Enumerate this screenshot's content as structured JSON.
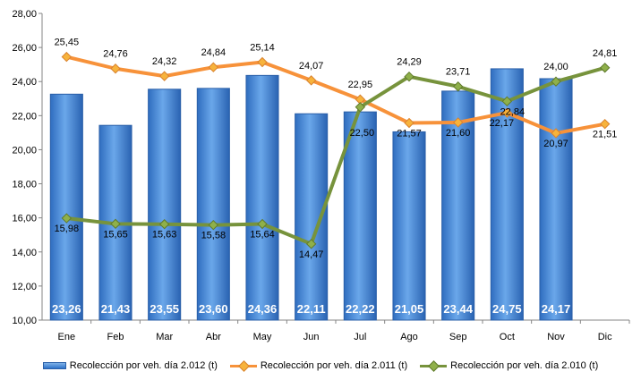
{
  "chart_data": {
    "type": "bar",
    "categories": [
      "Ene",
      "Feb",
      "Mar",
      "Abr",
      "May",
      "Jun",
      "Jul",
      "Ago",
      "Sep",
      "Oct",
      "Nov",
      "Dic"
    ],
    "ylim": [
      10,
      28
    ],
    "yticks": [
      "10,00",
      "12,00",
      "14,00",
      "16,00",
      "18,00",
      "20,00",
      "22,00",
      "24,00",
      "26,00",
      "28,00"
    ],
    "grid": false,
    "legend_position": "bottom",
    "series": [
      {
        "name": "Recolección por veh. día 2.012 (t)",
        "type": "bar",
        "color": "#3b7fd1",
        "values": [
          23.26,
          21.43,
          23.55,
          23.6,
          24.36,
          22.11,
          22.22,
          21.05,
          23.44,
          24.75,
          24.17,
          null
        ],
        "labels": [
          "23,26",
          "21,43",
          "23,55",
          "23,60",
          "24,36",
          "22,11",
          "22,22",
          "21,05",
          "23,44",
          "24,75",
          "24,17",
          ""
        ]
      },
      {
        "name": "Recolección por veh. día 2.011 (t)",
        "type": "line",
        "color": "#f7923a",
        "values": [
          25.45,
          24.76,
          24.32,
          24.84,
          25.14,
          24.07,
          22.95,
          21.57,
          21.6,
          22.17,
          20.97,
          21.51
        ],
        "labels": [
          "25,45",
          "24,76",
          "24,32",
          "24,84",
          "25,14",
          "24,07",
          "22,95",
          "21,57",
          "21,60",
          "22,17",
          "20,97",
          "21,51"
        ]
      },
      {
        "name": "Recolección por veh. día 2.010 (t)",
        "type": "line",
        "color": "#77933c",
        "values": [
          15.98,
          15.65,
          15.63,
          15.58,
          15.64,
          14.47,
          22.5,
          24.29,
          23.71,
          22.84,
          24.0,
          24.81
        ],
        "labels": [
          "15,98",
          "15,65",
          "15,63",
          "15,58",
          "15,64",
          "14,47",
          "22,50",
          "24,29",
          "23,71",
          "22,84",
          "24,00",
          "24,81"
        ]
      }
    ]
  }
}
